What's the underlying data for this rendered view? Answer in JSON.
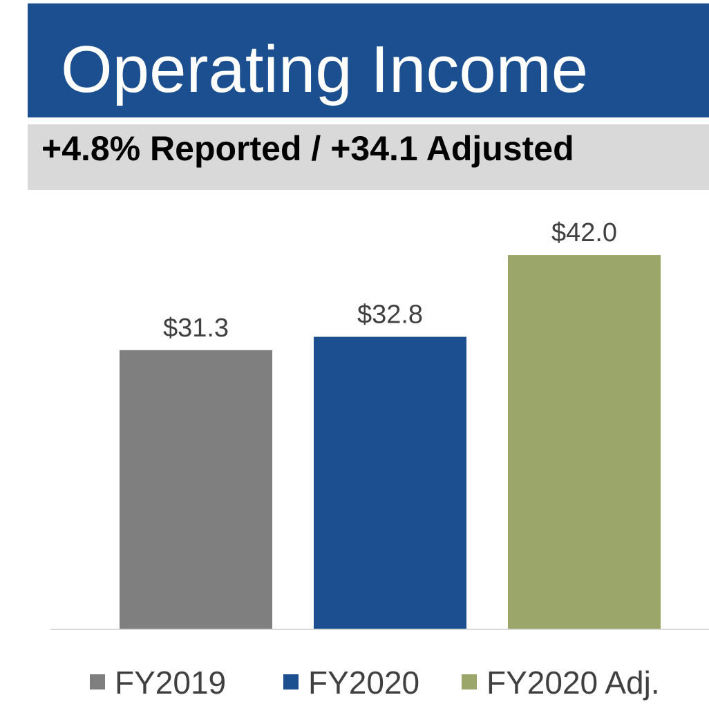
{
  "chart_data": {
    "type": "bar",
    "title": "Operating Income",
    "subtitle": "+4.8% Reported / +34.1 Adjusted",
    "series": [
      {
        "name": "FY2019",
        "color": "#7f7f7f",
        "values": [
          31.3
        ],
        "value_labels": [
          "$31.3"
        ]
      },
      {
        "name": "FY2020",
        "color": "#1c4f8f",
        "values": [
          32.8
        ],
        "value_labels": [
          "$32.8"
        ]
      },
      {
        "name": "FY2020 Adj.",
        "color": "#9aa66a",
        "values": [
          42.0
        ],
        "value_labels": [
          "$42.0"
        ]
      }
    ],
    "ylim": [
      0,
      50
    ],
    "legend": "bottom"
  }
}
